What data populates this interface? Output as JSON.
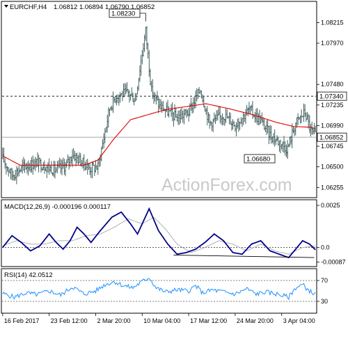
{
  "header": {
    "symbol": "EURCHF,H4",
    "ohlc": "1.06812 1.06894 1.06790 1.06852"
  },
  "watermark": "ActionForex.com",
  "colors": {
    "candle": "#2f4f4f",
    "ma": "#e00000",
    "macd": "#00008b",
    "signal": "#b0b0b0",
    "rsi": "#1e90ff",
    "frame": "#000000"
  },
  "chart_data": [
    {
      "type": "line",
      "pane": "price",
      "ylim": [
        1.0615,
        1.0845
      ],
      "yticks": [
        "1.08215",
        "1.07970",
        "1.07480",
        "1.07235",
        "1.06990",
        "1.06745",
        "1.06500",
        "1.06255"
      ],
      "ytick_values": [
        1.08215,
        1.0797,
        1.0748,
        1.07235,
        1.0699,
        1.06745,
        1.065,
        1.06255
      ],
      "xticks": [
        "16 Feb 2017",
        "23 Feb 12:00",
        "2 Mar 20:00",
        "10 Mar 04:00",
        "17 Mar 12:00",
        "24 Mar 20:00",
        "3 Apr 04:00"
      ],
      "xtick_index": [
        0,
        40,
        80,
        120,
        160,
        200,
        240
      ],
      "bar_count": 270,
      "annotations": {
        "high_label": "1.08230",
        "high_value": 1.0823,
        "high_index": 123,
        "low_label": "1.06680",
        "low_value": 1.0668,
        "low_index": 245,
        "level_label": "1.07340",
        "level_value": 1.0734,
        "last_label": "1.06852",
        "last_value": 1.06852
      },
      "series": [
        {
          "role": "price",
          "anchors": [
            [
              0,
              1.066
            ],
            [
              8,
              1.064
            ],
            [
              18,
              1.065
            ],
            [
              30,
              1.0655
            ],
            [
              45,
              1.0646
            ],
            [
              55,
              1.0652
            ],
            [
              60,
              1.0665
            ],
            [
              75,
              1.0648
            ],
            [
              82,
              1.065
            ],
            [
              92,
              1.072
            ],
            [
              98,
              1.0735
            ],
            [
              108,
              1.0738
            ],
            [
              114,
              1.073
            ],
            [
              120,
              1.0785
            ],
            [
              123,
              1.0812
            ],
            [
              128,
              1.074
            ],
            [
              135,
              1.0722
            ],
            [
              150,
              1.0708
            ],
            [
              160,
              1.0715
            ],
            [
              170,
              1.0742
            ],
            [
              178,
              1.0702
            ],
            [
              190,
              1.0712
            ],
            [
              200,
              1.07
            ],
            [
              212,
              1.0718
            ],
            [
              222,
              1.0705
            ],
            [
              230,
              1.0688
            ],
            [
              245,
              1.0672
            ],
            [
              252,
              1.0702
            ],
            [
              260,
              1.0715
            ],
            [
              265,
              1.0693
            ],
            [
              270,
              1.0685
            ]
          ]
        },
        {
          "role": "ma",
          "anchors": [
            [
              0,
              1.0663
            ],
            [
              15,
              1.0652
            ],
            [
              40,
              1.0652
            ],
            [
              70,
              1.0652
            ],
            [
              82,
              1.0658
            ],
            [
              95,
              1.0682
            ],
            [
              110,
              1.0706
            ],
            [
              125,
              1.0712
            ],
            [
              140,
              1.0718
            ],
            [
              160,
              1.0722
            ],
            [
              175,
              1.0725
            ],
            [
              195,
              1.0719
            ],
            [
              215,
              1.0712
            ],
            [
              235,
              1.0703
            ],
            [
              250,
              1.0698
            ],
            [
              265,
              1.0697
            ],
            [
              270,
              1.0695
            ]
          ]
        }
      ]
    },
    {
      "type": "line",
      "pane": "macd",
      "title": "MACD(12,26,9) -0.000196 0.000117",
      "ylim": [
        -0.00105,
        0.00275
      ],
      "yticks": [
        "0.0025",
        "0.0",
        "-0.00087"
      ],
      "ytick_values": [
        0.0025,
        0.0,
        -0.00087
      ],
      "series": [
        {
          "role": "macd",
          "anchors": [
            [
              0,
              0.0
            ],
            [
              8,
              0.0007
            ],
            [
              16,
              0.0003
            ],
            [
              24,
              -0.0002
            ],
            [
              32,
              0.0001
            ],
            [
              40,
              0.0008
            ],
            [
              46,
              0.0003
            ],
            [
              52,
              -0.0001
            ],
            [
              58,
              0.0004
            ],
            [
              64,
              0.0012
            ],
            [
              70,
              0.0008
            ],
            [
              76,
              0.0003
            ],
            [
              84,
              0.001
            ],
            [
              94,
              0.0018
            ],
            [
              102,
              0.0021
            ],
            [
              110,
              0.0014
            ],
            [
              116,
              0.0008
            ],
            [
              122,
              0.0017
            ],
            [
              126,
              0.0023
            ],
            [
              134,
              0.001
            ],
            [
              142,
              0.0002
            ],
            [
              150,
              -0.0004
            ],
            [
              158,
              -0.0003
            ],
            [
              166,
              -0.0001
            ],
            [
              174,
              0.0003
            ],
            [
              182,
              0.0008
            ],
            [
              190,
              0.0004
            ],
            [
              198,
              -0.0003
            ],
            [
              206,
              -0.0004
            ],
            [
              214,
              0.0002
            ],
            [
              222,
              0.0004
            ],
            [
              230,
              -0.0002
            ],
            [
              238,
              -0.0004
            ],
            [
              246,
              -0.0006
            ],
            [
              252,
              -0.0001
            ],
            [
              258,
              0.0004
            ],
            [
              264,
              0.0002
            ],
            [
              270,
              -0.0002
            ]
          ]
        },
        {
          "role": "signal",
          "anchors": [
            [
              0,
              0.0001
            ],
            [
              12,
              0.0004
            ],
            [
              24,
              0.0002
            ],
            [
              36,
              0.0002
            ],
            [
              48,
              0.0004
            ],
            [
              60,
              0.0004
            ],
            [
              72,
              0.0007
            ],
            [
              84,
              0.0008
            ],
            [
              96,
              0.0012
            ],
            [
              108,
              0.0017
            ],
            [
              120,
              0.0014
            ],
            [
              130,
              0.0018
            ],
            [
              140,
              0.0011
            ],
            [
              150,
              0.0002
            ],
            [
              162,
              -0.0003
            ],
            [
              174,
              0.0
            ],
            [
              186,
              0.0004
            ],
            [
              198,
              0.0002
            ],
            [
              210,
              -0.0002
            ],
            [
              222,
              0.0002
            ],
            [
              234,
              -0.0002
            ],
            [
              246,
              -0.0004
            ],
            [
              258,
              0.0
            ],
            [
              270,
              0.0001
            ]
          ]
        }
      ]
    },
    {
      "type": "line",
      "pane": "rsi",
      "title": "RSI(14) 42.0512",
      "ylim": [
        10,
        90
      ],
      "yticks": [
        "70",
        "30"
      ],
      "ytick_values": [
        70,
        30
      ],
      "series": [
        {
          "role": "rsi",
          "anchors": [
            [
              0,
              45
            ],
            [
              10,
              38
            ],
            [
              20,
              46
            ],
            [
              30,
              43
            ],
            [
              40,
              50
            ],
            [
              50,
              42
            ],
            [
              60,
              58
            ],
            [
              70,
              44
            ],
            [
              80,
              50
            ],
            [
              88,
              62
            ],
            [
              96,
              68
            ],
            [
              104,
              60
            ],
            [
              112,
              56
            ],
            [
              120,
              68
            ],
            [
              126,
              76
            ],
            [
              132,
              56
            ],
            [
              140,
              48
            ],
            [
              150,
              52
            ],
            [
              160,
              50
            ],
            [
              166,
              60
            ],
            [
              172,
              46
            ],
            [
              180,
              52
            ],
            [
              190,
              48
            ],
            [
              200,
              44
            ],
            [
              210,
              54
            ],
            [
              218,
              44
            ],
            [
              226,
              48
            ],
            [
              236,
              44
            ],
            [
              246,
              38
            ],
            [
              252,
              56
            ],
            [
              258,
              62
            ],
            [
              264,
              50
            ],
            [
              270,
              42
            ]
          ]
        }
      ]
    }
  ]
}
